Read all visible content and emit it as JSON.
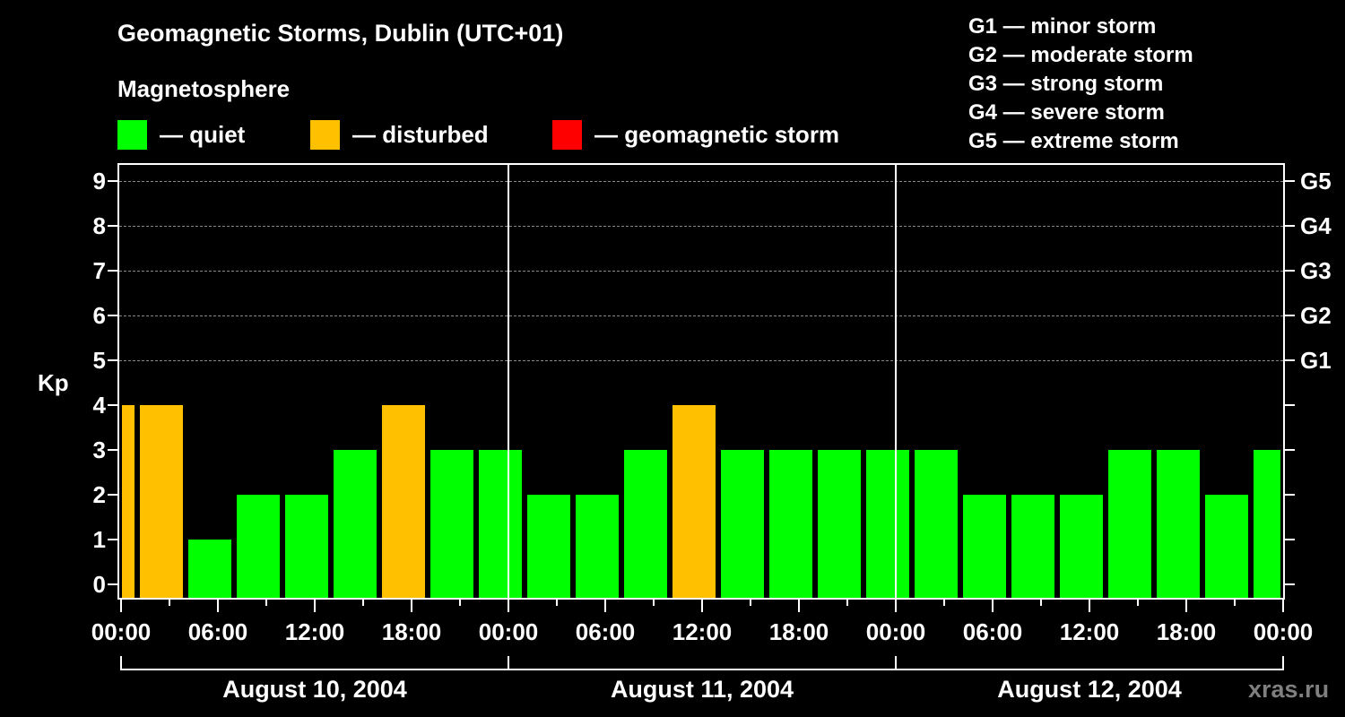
{
  "header": {
    "title": "Geomagnetic Storms, Dublin (UTC+01)",
    "subtitle": "Magnetosphere"
  },
  "legend": {
    "items": [
      {
        "label": "— quiet",
        "color": "#00ff00"
      },
      {
        "label": "— disturbed",
        "color": "#ffc000"
      },
      {
        "label": "— geomagnetic storm",
        "color": "#ff0000"
      }
    ]
  },
  "storm_scale": {
    "items": [
      "G1 — minor storm",
      "G2 — moderate storm",
      "G3 — strong storm",
      "G4 — severe storm",
      "G5 — extreme storm"
    ]
  },
  "axes": {
    "ylabel": "Kp",
    "yticks": [
      "0",
      "1",
      "2",
      "3",
      "4",
      "5",
      "6",
      "7",
      "8",
      "9"
    ],
    "gticks": [
      {
        "kp": 5,
        "label": "G1"
      },
      {
        "kp": 6,
        "label": "G2"
      },
      {
        "kp": 7,
        "label": "G3"
      },
      {
        "kp": 8,
        "label": "G4"
      },
      {
        "kp": 9,
        "label": "G5"
      }
    ],
    "xticks": [
      "00:00",
      "06:00",
      "12:00",
      "18:00",
      "00:00",
      "06:00",
      "12:00",
      "18:00",
      "00:00",
      "06:00",
      "12:00",
      "18:00",
      "00:00"
    ],
    "dates": [
      "August 10, 2004",
      "August 11, 2004",
      "August 12, 2004"
    ]
  },
  "watermark": "xras.ru",
  "chart_data": {
    "type": "bar",
    "title": "Geomagnetic Storms, Dublin (UTC+01)",
    "subtitle": "Magnetosphere",
    "xlabel": "",
    "ylabel": "Kp",
    "ylim": [
      0,
      9
    ],
    "secondary_y_labels": {
      "5": "G1",
      "6": "G2",
      "7": "G3",
      "8": "G4",
      "9": "G5"
    },
    "grid": "dashed horizontal at Kp 5-9",
    "legend": [
      {
        "label": "quiet",
        "color": "#00ff00"
      },
      {
        "label": "disturbed",
        "color": "#ffc000"
      },
      {
        "label": "geomagnetic storm",
        "color": "#ff0000"
      }
    ],
    "x_range": [
      "2004-08-10 00:00",
      "2004-08-13 00:00"
    ],
    "x_tick_labels": [
      "00:00",
      "06:00",
      "12:00",
      "18:00",
      "00:00",
      "06:00",
      "12:00",
      "18:00",
      "00:00",
      "06:00",
      "12:00",
      "18:00",
      "00:00"
    ],
    "date_labels": [
      "August 10, 2004",
      "August 11, 2004",
      "August 12, 2004"
    ],
    "categories": [
      "Aug 10 00:00-01:00",
      "Aug 10 01:00-04:00",
      "Aug 10 04:00-07:00",
      "Aug 10 07:00-10:00",
      "Aug 10 10:00-13:00",
      "Aug 10 13:00-16:00",
      "Aug 10 16:00-19:00",
      "Aug 10 19:00-22:00",
      "Aug 10 22:00-Aug 11 01:00",
      "Aug 11 01:00-04:00",
      "Aug 11 04:00-07:00",
      "Aug 11 07:00-10:00",
      "Aug 11 10:00-13:00",
      "Aug 11 13:00-16:00",
      "Aug 11 16:00-19:00",
      "Aug 11 19:00-22:00",
      "Aug 11 22:00-Aug 12 01:00",
      "Aug 12 01:00-04:00",
      "Aug 12 04:00-07:00",
      "Aug 12 07:00-10:00",
      "Aug 12 10:00-13:00",
      "Aug 12 13:00-16:00",
      "Aug 12 16:00-19:00",
      "Aug 12 19:00-22:00",
      "Aug 12 22:00-Aug 13 00:00"
    ],
    "start_hours": [
      0,
      1,
      4,
      7,
      10,
      13,
      16,
      19,
      22,
      25,
      28,
      31,
      34,
      37,
      40,
      43,
      46,
      49,
      52,
      55,
      58,
      61,
      64,
      67,
      70
    ],
    "end_hours": [
      1,
      4,
      7,
      10,
      13,
      16,
      19,
      22,
      25,
      28,
      31,
      34,
      37,
      40,
      43,
      46,
      49,
      52,
      55,
      58,
      61,
      64,
      67,
      70,
      72
    ],
    "values": [
      4,
      4,
      1,
      2,
      2,
      3,
      4,
      3,
      3,
      2,
      2,
      3,
      4,
      3,
      3,
      3,
      3,
      3,
      2,
      2,
      2,
      3,
      3,
      2,
      3
    ],
    "colors": [
      "#ffc000",
      "#ffc000",
      "#00ff00",
      "#00ff00",
      "#00ff00",
      "#00ff00",
      "#ffc000",
      "#00ff00",
      "#00ff00",
      "#00ff00",
      "#00ff00",
      "#00ff00",
      "#ffc000",
      "#00ff00",
      "#00ff00",
      "#00ff00",
      "#00ff00",
      "#00ff00",
      "#00ff00",
      "#00ff00",
      "#00ff00",
      "#00ff00",
      "#00ff00",
      "#00ff00",
      "#00ff00"
    ]
  }
}
